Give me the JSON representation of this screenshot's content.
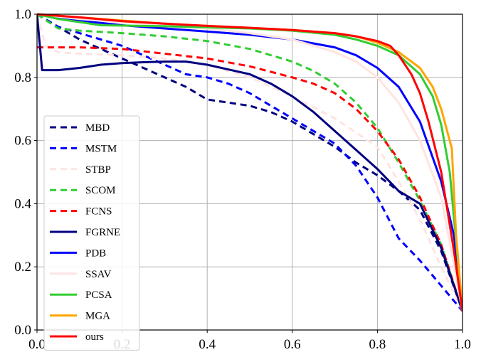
{
  "chart_data": {
    "type": "line",
    "title": "",
    "xlabel": "",
    "ylabel": "",
    "xlim": [
      0.0,
      1.0
    ],
    "ylim": [
      0.0,
      1.0
    ],
    "x_ticks": [
      "0.0",
      "0.2",
      "0.4",
      "0.6",
      "0.8",
      "1.0"
    ],
    "y_ticks": [
      "0.0",
      "0.2",
      "0.4",
      "0.6",
      "0.8",
      "1.0"
    ],
    "grid": true,
    "legend_position": "lower-left",
    "series": [
      {
        "name": "MBD",
        "color": "#000080",
        "dash": "dashed",
        "points": [
          [
            0,
            1.0
          ],
          [
            0.05,
            0.96
          ],
          [
            0.1,
            0.92
          ],
          [
            0.15,
            0.89
          ],
          [
            0.2,
            0.86
          ],
          [
            0.25,
            0.83
          ],
          [
            0.3,
            0.8
          ],
          [
            0.35,
            0.77
          ],
          [
            0.4,
            0.73
          ],
          [
            0.45,
            0.72
          ],
          [
            0.5,
            0.71
          ],
          [
            0.55,
            0.69
          ],
          [
            0.6,
            0.66
          ],
          [
            0.65,
            0.62
          ],
          [
            0.7,
            0.58
          ],
          [
            0.75,
            0.53
          ],
          [
            0.8,
            0.49
          ],
          [
            0.85,
            0.44
          ],
          [
            0.9,
            0.38
          ],
          [
            0.95,
            0.25
          ],
          [
            1.0,
            0.06
          ]
        ]
      },
      {
        "name": "MSTM",
        "color": "#0000ff",
        "dash": "dashed",
        "points": [
          [
            0,
            1.0
          ],
          [
            0.05,
            0.96
          ],
          [
            0.1,
            0.94
          ],
          [
            0.15,
            0.92
          ],
          [
            0.2,
            0.9
          ],
          [
            0.25,
            0.87
          ],
          [
            0.3,
            0.84
          ],
          [
            0.35,
            0.81
          ],
          [
            0.4,
            0.8
          ],
          [
            0.45,
            0.78
          ],
          [
            0.5,
            0.75
          ],
          [
            0.55,
            0.71
          ],
          [
            0.6,
            0.67
          ],
          [
            0.65,
            0.63
          ],
          [
            0.7,
            0.59
          ],
          [
            0.75,
            0.52
          ],
          [
            0.8,
            0.42
          ],
          [
            0.85,
            0.29
          ],
          [
            0.9,
            0.22
          ],
          [
            0.95,
            0.14
          ],
          [
            1.0,
            0.06
          ]
        ]
      },
      {
        "name": "STBP",
        "color": "#ffe4e1",
        "dash": "dashed",
        "points": [
          [
            0,
            1.0
          ],
          [
            0.02,
            0.9
          ],
          [
            0.05,
            0.88
          ],
          [
            0.1,
            0.875
          ],
          [
            0.2,
            0.87
          ],
          [
            0.3,
            0.86
          ],
          [
            0.4,
            0.84
          ],
          [
            0.5,
            0.8
          ],
          [
            0.6,
            0.74
          ],
          [
            0.7,
            0.67
          ],
          [
            0.8,
            0.58
          ],
          [
            0.85,
            0.47
          ],
          [
            0.9,
            0.35
          ],
          [
            0.95,
            0.2
          ],
          [
            1.0,
            0.06
          ]
        ]
      },
      {
        "name": "SCOM",
        "color": "#32cd32",
        "dash": "dashed",
        "points": [
          [
            0,
            1.0
          ],
          [
            0.05,
            0.955
          ],
          [
            0.1,
            0.948
          ],
          [
            0.2,
            0.94
          ],
          [
            0.3,
            0.93
          ],
          [
            0.4,
            0.915
          ],
          [
            0.5,
            0.89
          ],
          [
            0.6,
            0.85
          ],
          [
            0.65,
            0.82
          ],
          [
            0.7,
            0.78
          ],
          [
            0.75,
            0.72
          ],
          [
            0.8,
            0.64
          ],
          [
            0.85,
            0.53
          ],
          [
            0.9,
            0.41
          ],
          [
            0.95,
            0.27
          ],
          [
            1.0,
            0.06
          ]
        ]
      },
      {
        "name": "FCNS",
        "color": "#ff0000",
        "dash": "dashed",
        "points": [
          [
            0,
            0.895
          ],
          [
            0.1,
            0.895
          ],
          [
            0.2,
            0.89
          ],
          [
            0.3,
            0.875
          ],
          [
            0.4,
            0.86
          ],
          [
            0.5,
            0.835
          ],
          [
            0.6,
            0.8
          ],
          [
            0.65,
            0.78
          ],
          [
            0.7,
            0.75
          ],
          [
            0.75,
            0.7
          ],
          [
            0.8,
            0.63
          ],
          [
            0.85,
            0.54
          ],
          [
            0.9,
            0.42
          ],
          [
            0.95,
            0.27
          ],
          [
            1.0,
            0.06
          ]
        ]
      },
      {
        "name": "FGRNE",
        "color": "#000080",
        "dash": "solid",
        "points": [
          [
            0,
            1.0
          ],
          [
            0.012,
            0.823
          ],
          [
            0.05,
            0.823
          ],
          [
            0.1,
            0.83
          ],
          [
            0.15,
            0.84
          ],
          [
            0.2,
            0.845
          ],
          [
            0.25,
            0.848
          ],
          [
            0.3,
            0.85
          ],
          [
            0.35,
            0.85
          ],
          [
            0.4,
            0.84
          ],
          [
            0.45,
            0.825
          ],
          [
            0.5,
            0.81
          ],
          [
            0.55,
            0.78
          ],
          [
            0.6,
            0.74
          ],
          [
            0.65,
            0.69
          ],
          [
            0.7,
            0.63
          ],
          [
            0.75,
            0.57
          ],
          [
            0.8,
            0.51
          ],
          [
            0.85,
            0.44
          ],
          [
            0.9,
            0.4
          ],
          [
            0.95,
            0.26
          ],
          [
            1.0,
            0.06
          ]
        ]
      },
      {
        "name": "PDB",
        "color": "#0000ff",
        "dash": "solid",
        "points": [
          [
            0,
            1.0
          ],
          [
            0.1,
            0.98
          ],
          [
            0.2,
            0.965
          ],
          [
            0.3,
            0.955
          ],
          [
            0.4,
            0.945
          ],
          [
            0.5,
            0.935
          ],
          [
            0.6,
            0.92
          ],
          [
            0.7,
            0.895
          ],
          [
            0.75,
            0.87
          ],
          [
            0.8,
            0.83
          ],
          [
            0.85,
            0.77
          ],
          [
            0.9,
            0.66
          ],
          [
            0.95,
            0.47
          ],
          [
            0.98,
            0.3
          ],
          [
            1.0,
            0.06
          ]
        ]
      },
      {
        "name": "SSAV",
        "color": "#ffe4e1",
        "dash": "solid",
        "points": [
          [
            0,
            1.0
          ],
          [
            0.1,
            0.985
          ],
          [
            0.2,
            0.975
          ],
          [
            0.3,
            0.965
          ],
          [
            0.4,
            0.955
          ],
          [
            0.5,
            0.94
          ],
          [
            0.6,
            0.92
          ],
          [
            0.7,
            0.88
          ],
          [
            0.75,
            0.85
          ],
          [
            0.8,
            0.8
          ],
          [
            0.85,
            0.72
          ],
          [
            0.9,
            0.6
          ],
          [
            0.95,
            0.42
          ],
          [
            1.0,
            0.06
          ]
        ]
      },
      {
        "name": "PCSA",
        "color": "#32cd32",
        "dash": "solid",
        "points": [
          [
            0,
            1.0
          ],
          [
            0.05,
            0.985
          ],
          [
            0.15,
            0.965
          ],
          [
            0.3,
            0.962
          ],
          [
            0.5,
            0.955
          ],
          [
            0.6,
            0.948
          ],
          [
            0.7,
            0.935
          ],
          [
            0.75,
            0.92
          ],
          [
            0.8,
            0.9
          ],
          [
            0.85,
            0.87
          ],
          [
            0.9,
            0.81
          ],
          [
            0.93,
            0.74
          ],
          [
            0.95,
            0.65
          ],
          [
            0.97,
            0.5
          ],
          [
            1.0,
            0.06
          ]
        ]
      },
      {
        "name": "MGA",
        "color": "#ffa500",
        "dash": "solid",
        "points": [
          [
            0,
            1.0
          ],
          [
            0.1,
            0.99
          ],
          [
            0.2,
            0.98
          ],
          [
            0.3,
            0.97
          ],
          [
            0.4,
            0.963
          ],
          [
            0.5,
            0.957
          ],
          [
            0.6,
            0.95
          ],
          [
            0.7,
            0.94
          ],
          [
            0.75,
            0.93
          ],
          [
            0.8,
            0.91
          ],
          [
            0.85,
            0.88
          ],
          [
            0.9,
            0.83
          ],
          [
            0.93,
            0.77
          ],
          [
            0.95,
            0.7
          ],
          [
            0.975,
            0.575
          ],
          [
            0.985,
            0.3
          ],
          [
            1.0,
            0.06
          ]
        ]
      },
      {
        "name": "ours",
        "color": "#ff0000",
        "dash": "solid",
        "points": [
          [
            0,
            1.0
          ],
          [
            0.1,
            0.99
          ],
          [
            0.2,
            0.978
          ],
          [
            0.3,
            0.97
          ],
          [
            0.4,
            0.963
          ],
          [
            0.5,
            0.957
          ],
          [
            0.6,
            0.95
          ],
          [
            0.7,
            0.94
          ],
          [
            0.75,
            0.93
          ],
          [
            0.8,
            0.915
          ],
          [
            0.83,
            0.9
          ],
          [
            0.85,
            0.87
          ],
          [
            0.88,
            0.81
          ],
          [
            0.9,
            0.75
          ],
          [
            0.92,
            0.66
          ],
          [
            0.95,
            0.5
          ],
          [
            0.98,
            0.25
          ],
          [
            1.0,
            0.06
          ]
        ]
      }
    ]
  }
}
